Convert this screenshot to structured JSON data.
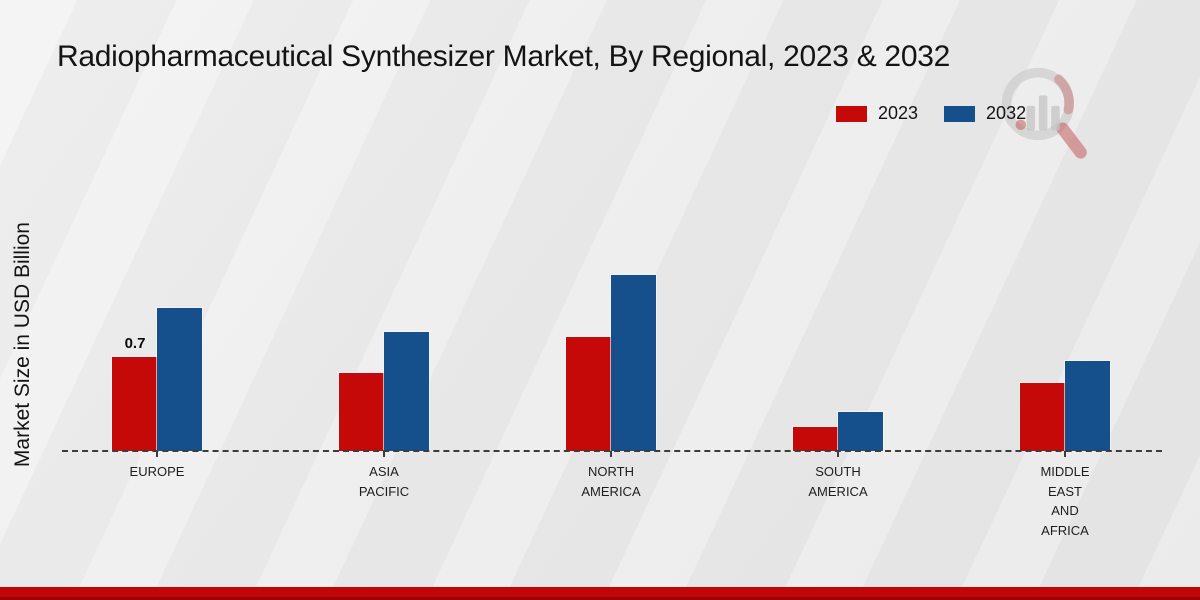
{
  "header": {
    "title": "Radiopharmaceutical Synthesizer Market, By Regional, 2023 & 2032"
  },
  "y_axis": {
    "label": "Market Size in USD Billion"
  },
  "legend": {
    "items": [
      {
        "label": "2023",
        "color": "#c50909"
      },
      {
        "label": "2032",
        "color": "#15508c"
      }
    ]
  },
  "chart_data": {
    "type": "bar",
    "title": "Radiopharmaceutical Synthesizer Market, By Regional, 2023 & 2032",
    "xlabel": "",
    "ylabel": "Market Size in USD Billion",
    "unit": "USD Billion",
    "categories": [
      "EUROPE",
      "ASIA PACIFIC",
      "NORTH AMERICA",
      "SOUTH AMERICA",
      "MIDDLE EAST AND AFRICA"
    ],
    "category_lines": [
      [
        "EUROPE"
      ],
      [
        "ASIA",
        "PACIFIC"
      ],
      [
        "NORTH",
        "AMERICA"
      ],
      [
        "SOUTH",
        "AMERICA"
      ],
      [
        "MIDDLE",
        "EAST",
        "AND",
        "AFRICA"
      ]
    ],
    "series": [
      {
        "name": "2023",
        "color": "#c50909",
        "values": [
          0.7,
          0.58,
          0.85,
          0.18,
          0.51
        ],
        "point_labels": [
          "0.7",
          "",
          "",
          "",
          ""
        ]
      },
      {
        "name": "2032",
        "color": "#15508c",
        "values": [
          1.07,
          0.89,
          1.31,
          0.29,
          0.67
        ],
        "point_labels": [
          "",
          "",
          "",
          "",
          ""
        ]
      }
    ],
    "ylim": [
      0,
      1.4
    ],
    "grid": false,
    "axis_ticks_visible": false,
    "baseline_style": "dashed",
    "legend_position": "top-right"
  },
  "watermark": {
    "name": "magnifier-chart-logo"
  },
  "footer": {
    "stripe_color": "#c20505"
  }
}
